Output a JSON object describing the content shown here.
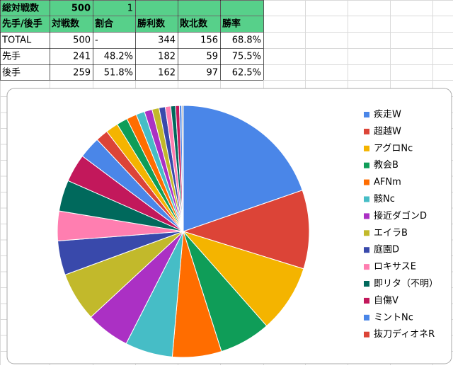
{
  "table": {
    "summary": [
      "総対戦数",
      500,
      1
    ],
    "header": [
      "先手/後手",
      "対戦数",
      "割合",
      "勝利数",
      "敗北数",
      "勝率"
    ],
    "rows": [
      [
        "TOTAL",
        500,
        "-",
        344,
        156,
        "68.8%"
      ],
      [
        "先手",
        241,
        "48.2%",
        182,
        59,
        "75.5%"
      ],
      [
        "後手",
        259,
        "51.8%",
        162,
        97,
        "62.5%"
      ]
    ]
  },
  "chart_data": {
    "type": "pie",
    "categories": [
      "疾走W",
      "超越W",
      "アグロNc",
      "教会B",
      "AFNm",
      "骸Nc",
      "接近ダゴンD",
      "エイラB",
      "庭園D",
      "ロキサスE",
      "即リタ（不明）",
      "自傷V",
      "ミントNc",
      "抜刀ディオネR",
      null,
      null,
      null,
      null,
      null,
      null,
      null,
      null,
      null,
      null,
      null,
      null
    ],
    "values": [
      19.7,
      10.1,
      8.7,
      6.6,
      6.3,
      6.1,
      5.6,
      6.3,
      4.4,
      3.8,
      4.0,
      3.6,
      2.8,
      1.6,
      1.6,
      1.4,
      1.3,
      1.1,
      1.0,
      0.9,
      0.8,
      0.7,
      0.6,
      0.5,
      0.3,
      0.2
    ],
    "colors": [
      "#4a86e8",
      "#dc4437",
      "#f4b400",
      "#0f9d58",
      "#ff6d00",
      "#46bdc6",
      "#ab30c4",
      "#c2b92b",
      "#3949ab",
      "#ff7eb0",
      "#00695c",
      "#c2185b",
      "#4a86e8",
      "#dc4437",
      "#f4b400",
      "#0f9d58",
      "#ff6d00",
      "#46bdc6",
      "#ab30c4",
      "#c2b92b",
      "#3949ab",
      "#ff7eb0",
      "#00695c",
      "#c2185b",
      "#4a86e8",
      "#b0b0b0"
    ],
    "legend": "right"
  }
}
